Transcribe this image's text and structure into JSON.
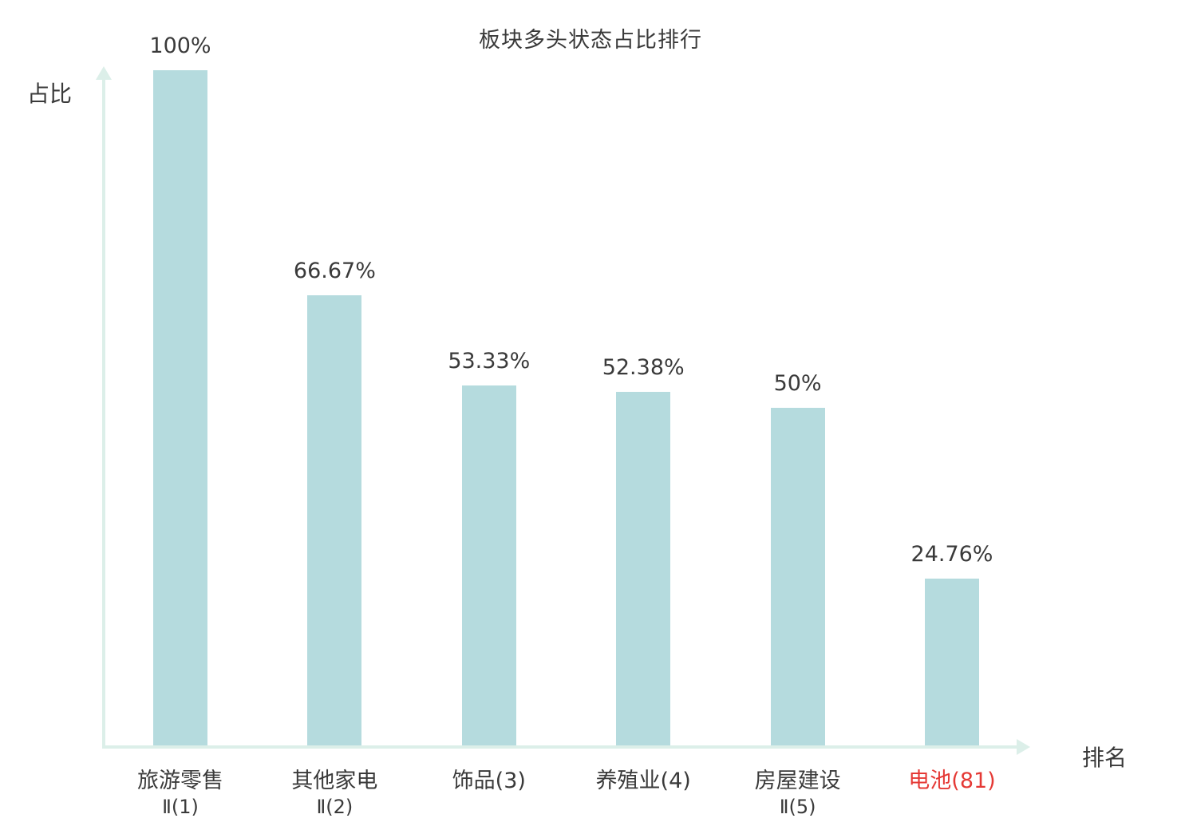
{
  "chart_data": {
    "type": "bar",
    "title": "板块多头状态占比排行",
    "ylabel": "占比",
    "xlabel": "排名",
    "ylim": [
      0,
      100
    ],
    "grid": false,
    "legend": "none",
    "bar_color": "#b5dbde",
    "axis_color": "#dcefe9",
    "text_color": "#3a3a3a",
    "highlight_color": "#e53935",
    "categories": [
      "旅游零售Ⅱ(1)",
      "其他家电Ⅱ(2)",
      "饰品(3)",
      "养殖业(4)",
      "房屋建设Ⅱ(5)",
      "电池(81)"
    ],
    "values": [
      100,
      66.67,
      53.33,
      52.38,
      50,
      24.76
    ],
    "bars": [
      {
        "label_lines": [
          "旅游零售",
          "Ⅱ(1)"
        ],
        "value": 100,
        "value_label": "100%",
        "highlight": false
      },
      {
        "label_lines": [
          "其他家电",
          "Ⅱ(2)"
        ],
        "value": 66.67,
        "value_label": "66.67%",
        "highlight": false
      },
      {
        "label_lines": [
          "饰品(3)"
        ],
        "value": 53.33,
        "value_label": "53.33%",
        "highlight": false
      },
      {
        "label_lines": [
          "养殖业(4)"
        ],
        "value": 52.38,
        "value_label": "52.38%",
        "highlight": false
      },
      {
        "label_lines": [
          "房屋建设",
          "Ⅱ(5)"
        ],
        "value": 50,
        "value_label": "50%",
        "highlight": false
      },
      {
        "label_lines": [
          "电池(81)"
        ],
        "value": 24.76,
        "value_label": "24.76%",
        "highlight": true
      }
    ]
  }
}
